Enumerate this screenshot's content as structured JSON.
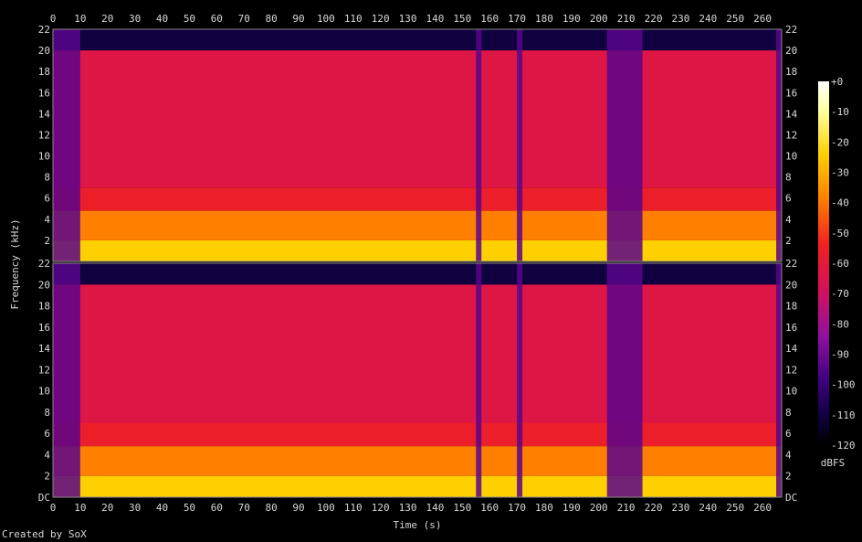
{
  "chart_data": {
    "type": "heatmap",
    "title": "",
    "xlabel": "Time (s)",
    "ylabel": "Frequency (kHz)",
    "x_ticks": [
      "0",
      "10",
      "20",
      "30",
      "40",
      "50",
      "60",
      "70",
      "80",
      "90",
      "100",
      "110",
      "120",
      "130",
      "140",
      "150",
      "160",
      "170",
      "180",
      "190",
      "200",
      "210",
      "220",
      "230",
      "240",
      "250",
      "260"
    ],
    "x_range": [
      0,
      267
    ],
    "channels": [
      {
        "name": "",
        "y_ticks": [
          "22",
          "20",
          "18",
          "16",
          "14",
          "12",
          "10",
          "8",
          "6",
          "4",
          "2"
        ],
        "y_range": [
          0,
          22
        ]
      },
      {
        "name": "",
        "y_ticks": [
          "22",
          "20",
          "18",
          "16",
          "14",
          "12",
          "10",
          "8",
          "6",
          "4",
          "2",
          "DC"
        ],
        "y_range": [
          0,
          22
        ]
      }
    ],
    "colorbar": {
      "label": "dBFS",
      "ticks": [
        "+0",
        "-10",
        "-20",
        "-30",
        "-40",
        "-50",
        "-60",
        "-70",
        "-80",
        "-90",
        "-100",
        "-110",
        "-120"
      ],
      "range": [
        -120,
        0
      ]
    },
    "bands_dbfs": [
      {
        "freq_khz": [
          0,
          2
        ],
        "level": -25
      },
      {
        "freq_khz": [
          2,
          4.8
        ],
        "level": -40
      },
      {
        "freq_khz": [
          4.8,
          7
        ],
        "level": -57
      },
      {
        "freq_khz": [
          7,
          20
        ],
        "level": -64
      },
      {
        "freq_khz": [
          20,
          22
        ],
        "level": -110
      }
    ],
    "quiet_regions_s": [
      [
        0,
        10
      ],
      [
        155,
        157
      ],
      [
        170,
        172
      ],
      [
        203,
        216
      ],
      [
        265,
        267
      ]
    ],
    "colors": {
      "background": "#000000",
      "text": "#d8d8d8"
    }
  },
  "footer": {
    "credit": "Created by SoX"
  }
}
